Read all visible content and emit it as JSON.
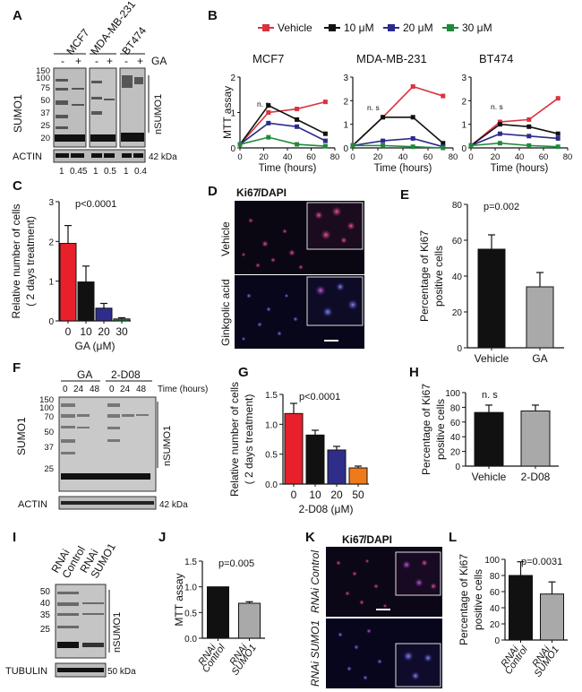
{
  "panels": {
    "A": "A",
    "B": "B",
    "C": "C",
    "D": "D",
    "E": "E",
    "F": "F",
    "G": "G",
    "H": "H",
    "I": "I",
    "J": "J",
    "K": "K",
    "L": "L"
  },
  "blotA": {
    "lanes": [
      "MCF7",
      "MDA-MB-231",
      "BT474"
    ],
    "treatment": "GA",
    "signs": [
      "-",
      "+",
      "-",
      "+",
      "-",
      "+"
    ],
    "markers": [
      "150",
      "100",
      "75",
      "50",
      "37",
      "25",
      "20"
    ],
    "protein": "SUMO1",
    "bracket": "nSUMO1",
    "loading": "ACTIN",
    "loading_kda": "42 kDa",
    "quant": [
      "1",
      "0.45",
      "1",
      "0.5",
      "1",
      "0.4"
    ]
  },
  "panelB": {
    "legend": [
      "Vehicle",
      "10 μM",
      "20 μM",
      "30 μM"
    ],
    "colors": [
      "#d9333f",
      "#111111",
      "#2b2b8c",
      "#1f8a3a"
    ],
    "titles": [
      "MCF7",
      "MDA-MB-231",
      "BT474"
    ],
    "ylabel": "MTT assay",
    "xlabel": "Time (hours)",
    "ns": "n. s"
  },
  "panelD": {
    "ki67": "Ki67",
    "dapi": "/DAPI",
    "vehicle": "Vehicle",
    "ginkgolic": "Ginkgolic acid"
  },
  "blotF": {
    "groups": [
      "GA",
      "2-D08"
    ],
    "times": [
      "0",
      "24",
      "48",
      "0",
      "24",
      "48"
    ],
    "time_label": "Time (hours)",
    "markers": [
      "150",
      "100",
      "70",
      "50",
      "37",
      "25"
    ],
    "protein": "SUMO1",
    "bracket": "nSUMO1",
    "loading": "ACTIN",
    "loading_kda": "42 kDa"
  },
  "blotI": {
    "lane_top": [
      "RNAi",
      "RNAi"
    ],
    "lane_bottom": [
      "Control",
      "SUMO1"
    ],
    "markers": [
      "50",
      "40",
      "35",
      "25"
    ],
    "bracket": "nSUMO1",
    "loading": "TUBULIN",
    "loading_kda": "50 kDa"
  },
  "panelK": {
    "ki67": "Ki67",
    "dapi": "/DAPI",
    "control": "RNAi Control",
    "sumo1": "RNAi SUMO1"
  },
  "chart_data": [
    {
      "panel": "B-MCF7",
      "type": "line",
      "title": "MCF7",
      "xlabel": "Time (hours)",
      "ylabel": "MTT assay",
      "x": [
        0,
        24,
        48,
        72
      ],
      "xlim": [
        0,
        80
      ],
      "ylim": [
        0,
        2
      ],
      "yticks": [
        0,
        1,
        2
      ],
      "xticks": [
        0,
        20,
        40,
        60,
        80
      ],
      "series": [
        {
          "name": "Vehicle",
          "values": [
            0.1,
            1.0,
            1.1,
            1.3
          ]
        },
        {
          "name": "10 μM",
          "values": [
            0.1,
            1.2,
            0.8,
            0.4
          ]
        },
        {
          "name": "20 μM",
          "values": [
            0.1,
            0.7,
            0.6,
            0.2
          ]
        },
        {
          "name": "30 μM",
          "values": [
            0.1,
            0.3,
            0.1,
            0.05
          ]
        }
      ]
    },
    {
      "panel": "B-MDA-MB-231",
      "type": "line",
      "title": "MDA-MB-231",
      "xlabel": "Time (hours)",
      "ylabel": "",
      "x": [
        0,
        24,
        48,
        72
      ],
      "xlim": [
        0,
        80
      ],
      "ylim": [
        0,
        3
      ],
      "yticks": [
        0,
        1,
        2,
        3
      ],
      "xticks": [
        0,
        20,
        40,
        60,
        80
      ],
      "series": [
        {
          "name": "Vehicle",
          "values": [
            0.1,
            1.3,
            2.6,
            2.2
          ]
        },
        {
          "name": "10 μM",
          "values": [
            0.1,
            1.3,
            1.3,
            0.2
          ]
        },
        {
          "name": "20 μM",
          "values": [
            0.1,
            0.3,
            0.4,
            0.05
          ]
        },
        {
          "name": "30 μM",
          "values": [
            0.1,
            0.1,
            0.05,
            0.0
          ]
        }
      ]
    },
    {
      "panel": "B-BT474",
      "type": "line",
      "title": "BT474",
      "xlabel": "Time (hours)",
      "ylabel": "",
      "x": [
        0,
        24,
        48,
        72
      ],
      "xlim": [
        0,
        80
      ],
      "ylim": [
        0,
        3
      ],
      "yticks": [
        0,
        1,
        2,
        3
      ],
      "xticks": [
        0,
        20,
        40,
        60,
        80
      ],
      "series": [
        {
          "name": "Vehicle",
          "values": [
            0.1,
            1.1,
            1.2,
            2.1
          ]
        },
        {
          "name": "10 μM",
          "values": [
            0.1,
            1.0,
            0.9,
            0.6
          ]
        },
        {
          "name": "20 μM",
          "values": [
            0.1,
            0.6,
            0.5,
            0.4
          ]
        },
        {
          "name": "30 μM",
          "values": [
            0.1,
            0.2,
            0.1,
            0.05
          ]
        }
      ]
    },
    {
      "panel": "C",
      "type": "bar",
      "ylabel": "Relative number of cells\n( 2 days treatment)",
      "xlabel": "GA (μM)",
      "categories": [
        "0",
        "10",
        "20",
        "30"
      ],
      "values": [
        1.95,
        0.98,
        0.32,
        0.05
      ],
      "errors": [
        0.45,
        0.4,
        0.12,
        0.03
      ],
      "colors": [
        "#e8202a",
        "#111111",
        "#2e2e8a",
        "#1f8a3a"
      ],
      "ylim": [
        0,
        3
      ],
      "yticks": [
        0,
        1,
        2,
        3
      ],
      "annotation": "p<0.0001"
    },
    {
      "panel": "E",
      "type": "bar",
      "ylabel": "Percentage of Ki67\npositive cells",
      "xlabel": "",
      "categories": [
        "Vehicle",
        "GA"
      ],
      "values": [
        55,
        34
      ],
      "errors": [
        8,
        8
      ],
      "colors": [
        "#111111",
        "#a9a9a9"
      ],
      "ylim": [
        0,
        80
      ],
      "yticks": [
        0,
        20,
        40,
        60,
        80
      ],
      "annotation": "p=0.002"
    },
    {
      "panel": "G",
      "type": "bar",
      "ylabel": "Relative number of cells\n( 2 days treatment)",
      "xlabel": "2-D08 (μM)",
      "categories": [
        "0",
        "10",
        "20",
        "50"
      ],
      "values": [
        1.18,
        0.82,
        0.57,
        0.27
      ],
      "errors": [
        0.17,
        0.08,
        0.06,
        0.03
      ],
      "colors": [
        "#e8202a",
        "#111111",
        "#2e2e8a",
        "#f07a1a"
      ],
      "ylim": [
        0,
        1.5
      ],
      "yticks": [
        0,
        0.5,
        1,
        1.5
      ],
      "ytick_labels": [
        "0.0",
        "0.5",
        "1.0",
        "1.5"
      ],
      "annotation": "p<0.0001"
    },
    {
      "panel": "H",
      "type": "bar",
      "ylabel": "Percentage of Ki67\npositive cells",
      "xlabel": "",
      "categories": [
        "Vehicle",
        "2-D08"
      ],
      "values": [
        73,
        75
      ],
      "errors": [
        10,
        8
      ],
      "colors": [
        "#111111",
        "#a9a9a9"
      ],
      "ylim": [
        0,
        100
      ],
      "yticks": [
        0,
        20,
        40,
        60,
        80,
        100
      ],
      "annotation": "n. s"
    },
    {
      "panel": "J",
      "type": "bar",
      "ylabel": "MTT assay",
      "xlabel": "",
      "categories": [
        "RNAi\nControl",
        "RNAi\nSUMO1"
      ],
      "values": [
        1.0,
        0.68
      ],
      "errors": [
        0,
        0.03
      ],
      "colors": [
        "#111111",
        "#a9a9a9"
      ],
      "ylim": [
        0,
        1.5
      ],
      "yticks": [
        0,
        0.5,
        1,
        1.5
      ],
      "ytick_labels": [
        "0.0",
        "0.5",
        "1.0",
        "1.5"
      ],
      "annotation": "p=0.005"
    },
    {
      "panel": "L",
      "type": "bar",
      "ylabel": "Percentage of Ki67\npositive cells",
      "xlabel": "",
      "categories": [
        "RNAi\nControl",
        "RNAi\nSUMO1"
      ],
      "values": [
        80,
        57
      ],
      "errors": [
        17,
        15
      ],
      "colors": [
        "#111111",
        "#a9a9a9"
      ],
      "ylim": [
        0,
        100
      ],
      "yticks": [
        0,
        20,
        40,
        60,
        80,
        100
      ],
      "annotation": "p=0.0031"
    }
  ]
}
